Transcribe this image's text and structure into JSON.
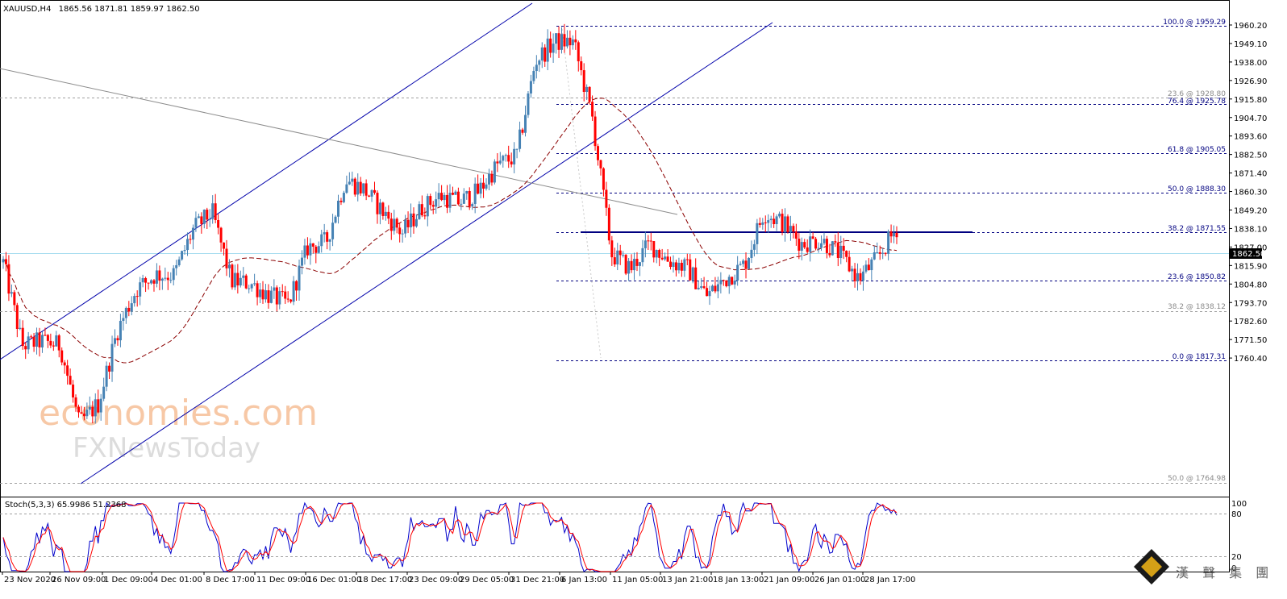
{
  "header": {
    "symbol": "XAUUSD,H4",
    "ohlc": "1865.56 1871.81 1859.97 1862.50"
  },
  "price_axis": {
    "ticks": [
      "1960.20",
      "1949.10",
      "1938.00",
      "1926.90",
      "1915.80",
      "1904.70",
      "1893.60",
      "1882.50",
      "1871.40",
      "1860.30",
      "1849.20",
      "1838.10",
      "1827.00",
      "1815.90",
      "1804.80",
      "1793.70",
      "1782.60",
      "1771.50",
      "1760.40"
    ],
    "current_price": "1862.50"
  },
  "stoch_axis": {
    "ticks": [
      "100",
      "80",
      "20",
      "0"
    ]
  },
  "time_axis": {
    "labels": [
      "23 Nov 2020",
      "26 Nov 09:00",
      "1 Dec 09:00",
      "4 Dec 01:00",
      "8 Dec 17:00",
      "11 Dec 09:00",
      "16 Dec 01:00",
      "18 Dec 17:00",
      "23 Dec 09:00",
      "29 Dec 05:00",
      "31 Dec 21:00",
      "6 Jan 13:00",
      "11 Jan 05:00",
      "13 Jan 21:00",
      "18 Jan 13:00",
      "21 Jan 09:00",
      "26 Jan 01:00",
      "28 Jan 17:00"
    ]
  },
  "fib_levels": [
    {
      "label": "100.0 @ 1959.29",
      "price": 1959.29,
      "style": "blue"
    },
    {
      "label": "23.6 @ 1928.80",
      "price": 1928.8,
      "style": "grey"
    },
    {
      "label": "76.4 @ 1925.78",
      "price": 1925.78,
      "style": "blue"
    },
    {
      "label": "61.8 @ 1905.05",
      "price": 1905.05,
      "style": "blue"
    },
    {
      "label": "50.0 @ 1888.30",
      "price": 1888.3,
      "style": "blue"
    },
    {
      "label": "38.2 @ 1871.55",
      "price": 1871.55,
      "style": "blue"
    },
    {
      "label": "23.6 @ 1850.82",
      "price": 1850.82,
      "style": "blue"
    },
    {
      "label": "38.2 @ 1838.12",
      "price": 1838.12,
      "style": "grey"
    },
    {
      "label": "0.0 @ 1817.31",
      "price": 1817.31,
      "style": "blue"
    },
    {
      "label": "50.0 @ 1764.98",
      "price": 1764.98,
      "style": "grey"
    }
  ],
  "stoch_label": "Stoch(5,3,3) 65.9986 51.2368",
  "watermark": {
    "line1": "economies.com",
    "line2": "FXNewsToday"
  },
  "logo_text": "漢 聲 集 團",
  "colors": {
    "bull": "#4682b4",
    "bear": "#ff0000",
    "channel": "#0000aa",
    "fib": "#000080",
    "ma": "#8b0000",
    "stoch_main": "#0000cc",
    "stoch_signal": "#ff0000"
  },
  "chart_data": {
    "type": "candlestick",
    "instrument": "XAUUSD",
    "timeframe": "H4",
    "y_range": [
      1756,
      1969
    ],
    "close_path": [
      {
        "t": "23 Nov 2020",
        "c": 1846
      },
      {
        "t": "24 Nov",
        "c": 1806
      },
      {
        "t": "25 Nov",
        "c": 1808
      },
      {
        "t": "26 Nov 09:00",
        "c": 1806
      },
      {
        "t": "27 Nov",
        "c": 1768
      },
      {
        "t": "30 Nov",
        "c": 1778
      },
      {
        "t": "1 Dec 09:00",
        "c": 1813
      },
      {
        "t": "2 Dec",
        "c": 1833
      },
      {
        "t": "3 Dec",
        "c": 1840
      },
      {
        "t": "4 Dec 01:00",
        "c": 1840
      },
      {
        "t": "7 Dec",
        "c": 1862
      },
      {
        "t": "8 Dec 17:00",
        "c": 1870
      },
      {
        "t": "9 Dec",
        "c": 1837
      },
      {
        "t": "10 Dec",
        "c": 1836
      },
      {
        "t": "11 Dec 09:00",
        "c": 1830
      },
      {
        "t": "14 Dec",
        "c": 1826
      },
      {
        "t": "15 Dec",
        "c": 1853
      },
      {
        "t": "16 Dec 01:00",
        "c": 1856
      },
      {
        "t": "17 Dec",
        "c": 1886
      },
      {
        "t": "18 Dec 17:00",
        "c": 1881
      },
      {
        "t": "21 Dec",
        "c": 1870
      },
      {
        "t": "22 Dec",
        "c": 1860
      },
      {
        "t": "23 Dec 09:00",
        "c": 1872
      },
      {
        "t": "24 Dec",
        "c": 1878
      },
      {
        "t": "28 Dec",
        "c": 1875
      },
      {
        "t": "29 Dec 05:00",
        "c": 1880
      },
      {
        "t": "30 Dec",
        "c": 1893
      },
      {
        "t": "31 Dec 21:00",
        "c": 1897
      },
      {
        "t": "4 Jan",
        "c": 1943
      },
      {
        "t": "5 Jan",
        "c": 1952
      },
      {
        "t": "6 Jan 13:00",
        "c": 1952
      },
      {
        "t": "7 Jan",
        "c": 1915
      },
      {
        "t": "8 Jan",
        "c": 1850
      },
      {
        "t": "11 Jan 05:00",
        "c": 1843
      },
      {
        "t": "12 Jan",
        "c": 1855
      },
      {
        "t": "13 Jan 21:00",
        "c": 1847
      },
      {
        "t": "14 Jan",
        "c": 1843
      },
      {
        "t": "15 Jan",
        "c": 1830
      },
      {
        "t": "18 Jan 13:00",
        "c": 1838
      },
      {
        "t": "19 Jan",
        "c": 1845
      },
      {
        "t": "20 Jan",
        "c": 1870
      },
      {
        "t": "21 Jan 09:00",
        "c": 1865
      },
      {
        "t": "22 Jan",
        "c": 1855
      },
      {
        "t": "25 Jan",
        "c": 1857
      },
      {
        "t": "26 Jan 01:00",
        "c": 1850
      },
      {
        "t": "27 Jan",
        "c": 1838
      },
      {
        "t": "28 Jan 17:00",
        "c": 1848
      },
      {
        "t": "29 Jan",
        "c": 1862.5
      }
    ],
    "horizontal_resistance": 1871.55,
    "grey_levels": [
      1928.8,
      1838.12,
      1764.98
    ],
    "cyan_line": 1862.5
  }
}
